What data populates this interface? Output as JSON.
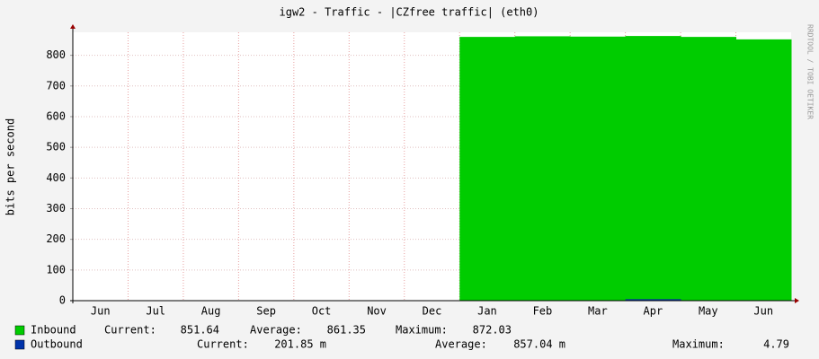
{
  "chart_data": {
    "type": "area",
    "title": "igw2 - Traffic - |CZfree traffic| (eth0)",
    "y_label": "bits per second",
    "watermark": "RRDTOOL / TOBI OETIKER",
    "categories": [
      "Jun",
      "Jul",
      "Aug",
      "Sep",
      "Oct",
      "Nov",
      "Dec",
      "Jan",
      "Feb",
      "Mar",
      "Apr",
      "May",
      "Jun"
    ],
    "series": [
      {
        "name": "Inbound",
        "color": "#00cc00",
        "values": [
          null,
          null,
          null,
          null,
          null,
          null,
          null,
          860,
          862,
          861,
          863,
          860,
          852
        ],
        "stats": [
          "Current:",
          "851.64",
          "Average:",
          "861.35",
          "Maximum:",
          "872.03"
        ]
      },
      {
        "name": "Outbound",
        "color": "#0033aa",
        "values": [
          null,
          null,
          null,
          null,
          null,
          null,
          null,
          0,
          0,
          0,
          4.79,
          0,
          0.2
        ],
        "stats": [
          "Current:",
          "201.85 m",
          "Average:",
          "857.04 m",
          "Maximum:",
          "4.79"
        ]
      }
    ],
    "ylim": [
      0,
      875
    ],
    "yticks": [
      0,
      100,
      200,
      300,
      400,
      500,
      600,
      700,
      800
    ],
    "grid": true
  }
}
